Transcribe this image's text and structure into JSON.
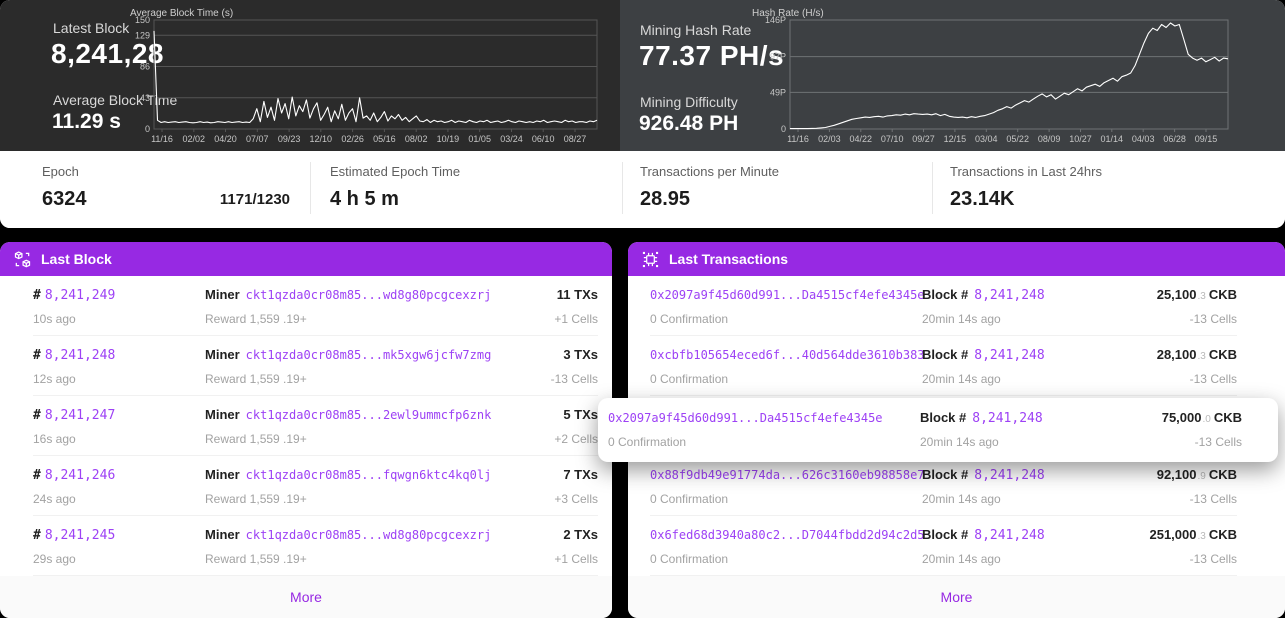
{
  "theme": {
    "purple": "#9729e3",
    "link_purple": "#9d41f5",
    "dark_left_bg": "#2b2b2b",
    "dark_right_bg": "#3d4043",
    "page_bg": "#000000"
  },
  "top": {
    "left": {
      "latest_block_label": "Latest Block",
      "latest_block_value": "8,241,28",
      "avg_block_time_label": "Average Block Time",
      "avg_block_time_value": "11.29 s"
    },
    "right": {
      "hash_rate_label": "Mining Hash Rate",
      "hash_rate_value": "77.37 PH/s",
      "difficulty_label": "Mining Difficulty",
      "difficulty_value": "926.48 PH"
    }
  },
  "chart_data": [
    {
      "type": "line",
      "title": "Average Block Time (s)",
      "xlabel": "",
      "ylabel": "seconds",
      "ylim": [
        0,
        150
      ],
      "grid": true,
      "legend_position": "none",
      "yticks": [
        {
          "value": 150,
          "label": "150"
        },
        {
          "value": 129,
          "label": "129"
        },
        {
          "value": 86,
          "label": "86"
        },
        {
          "value": 43,
          "label": "43"
        },
        {
          "value": 0,
          "label": "0"
        }
      ],
      "x_labels": [
        "11/16",
        "02/02",
        "04/20",
        "07/07",
        "09/23",
        "12/10",
        "02/26",
        "05/16",
        "08/02",
        "10/19",
        "01/05",
        "03/24",
        "06/10",
        "08/27"
      ],
      "grid_color": "#555555",
      "text_color": "#c6c6c6",
      "line_color": "#ffffff",
      "values": [
        135,
        12,
        9,
        10,
        9,
        9.5,
        10,
        9,
        9.5,
        10,
        9,
        8.5,
        9,
        10,
        9,
        9.5,
        8.5,
        9,
        10,
        9.5,
        9,
        10,
        9,
        9.5,
        10,
        9,
        9.5,
        9,
        14,
        28,
        10,
        38,
        16,
        30,
        12,
        42,
        22,
        35,
        14,
        44,
        18,
        32,
        24,
        40,
        15,
        28,
        36,
        12,
        20,
        30,
        10,
        25,
        14,
        34,
        12,
        22,
        28,
        10,
        43,
        15,
        18,
        12,
        22,
        10,
        16,
        24,
        11,
        18,
        14,
        20,
        12,
        16,
        10,
        14,
        18,
        11,
        10,
        13,
        9,
        12,
        10,
        11,
        9,
        10,
        12,
        9,
        11,
        10,
        9,
        12,
        10,
        9,
        11,
        10,
        12,
        9,
        10,
        11,
        9,
        10,
        12,
        10,
        9,
        11,
        10,
        9,
        10,
        9,
        11,
        10,
        12,
        9,
        10,
        11,
        10,
        9,
        12,
        10,
        11,
        9,
        10,
        10,
        9,
        11,
        10,
        12
      ]
    },
    {
      "type": "line",
      "title": "Hash Rate (H/s)",
      "xlabel": "",
      "ylabel": "hash rate (P)",
      "ylim": [
        0,
        146
      ],
      "grid": true,
      "legend_position": "none",
      "yticks": [
        {
          "value": 146,
          "label": "146P"
        },
        {
          "value": 97,
          "label": "97P"
        },
        {
          "value": 49,
          "label": "49P"
        },
        {
          "value": 0,
          "label": "0"
        }
      ],
      "x_labels": [
        "11/16",
        "02/03",
        "04/22",
        "07/10",
        "09/27",
        "12/15",
        "03/04",
        "05/22",
        "08/09",
        "10/27",
        "01/14",
        "04/03",
        "06/28",
        "09/15"
      ],
      "grid_color": "#6f7274",
      "text_color": "#c6c6c6",
      "line_color": "#ffffff",
      "values": [
        0.5,
        0.6,
        0.5,
        0.7,
        0.6,
        0.8,
        1,
        1.5,
        2,
        3.5,
        5,
        7,
        9,
        11,
        13,
        14,
        15,
        16,
        15.5,
        16.5,
        17,
        16,
        17.5,
        18,
        19,
        18.5,
        20,
        19,
        20.5,
        20,
        19.5,
        20,
        19,
        20.5,
        18,
        19.5,
        17,
        16,
        15.5,
        16,
        15,
        16.5,
        15.5,
        17,
        18,
        20,
        22,
        25,
        27,
        30,
        28,
        32,
        35,
        38,
        36,
        40,
        44,
        47,
        43,
        46,
        40,
        44,
        48,
        46,
        50,
        54,
        51,
        56,
        58,
        60,
        57,
        62,
        65,
        68,
        64,
        70,
        72,
        75,
        85,
        100,
        115,
        128,
        135,
        132,
        140,
        136,
        142,
        138,
        140,
        120,
        100,
        95,
        92,
        95,
        90,
        93,
        96,
        91,
        95,
        94
      ]
    }
  ],
  "stats": {
    "epoch_label": "Epoch",
    "epoch_value": "6324",
    "epoch_progress": "1171/1230",
    "est_label": "Estimated Epoch Time",
    "est_value": "4 h 5 m",
    "tpm_label": "Transactions per Minute",
    "tpm_value": "28.95",
    "t24_label": "Transactions in Last 24hrs",
    "t24_value": "23.14K"
  },
  "last_block": {
    "title": "Last Block",
    "number_prefix": "#",
    "miner_label": "Miner",
    "more": "More",
    "rows": [
      {
        "number": "8,241,249",
        "miner": "ckt1qzda0cr08m85...wd8g80pcgcexzrj",
        "txs": "11 TXs",
        "age": "10s ago",
        "reward": "Reward 1,559 .19+",
        "cells": "+1 Cells"
      },
      {
        "number": "8,241,248",
        "miner": "ckt1qzda0cr08m85...mk5xgw6jcfw7zmg",
        "txs": "3 TXs",
        "age": "12s ago",
        "reward": "Reward 1,559 .19+",
        "cells": "-13 Cells"
      },
      {
        "number": "8,241,247",
        "miner": "ckt1qzda0cr08m85...2ewl9ummcfp6znk",
        "txs": "5 TXs",
        "age": "16s ago",
        "reward": "Reward 1,559 .19+",
        "cells": "+2 Cells"
      },
      {
        "number": "8,241,246",
        "miner": "ckt1qzda0cr08m85...fqwgn6ktc4kq0lj",
        "txs": "7 TXs",
        "age": "24s ago",
        "reward": "Reward 1,559 .19+",
        "cells": "+3 Cells"
      },
      {
        "number": "8,241,245",
        "miner": "ckt1qzda0cr08m85...wd8g80pcgcexzrj",
        "txs": "2 TXs",
        "age": "29s ago",
        "reward": "Reward 1,559 .19+",
        "cells": "+1 Cells"
      }
    ]
  },
  "last_transactions": {
    "title": "Last Transactions",
    "block_label": "Block #",
    "more": "More",
    "rows": [
      {
        "hash": "0x2097a9f45d60d991...Da4515cf4efe4345e",
        "block": "8,241,248",
        "amount": "25,100",
        "decimal": ".3",
        "unit": "CKB",
        "confirmation": "0 Confirmation",
        "age": "20min 14s ago",
        "cells": "-13 Cells"
      },
      {
        "hash": "0xcbfb105654eced6f...40d564dde3610b383",
        "block": "8,241,248",
        "amount": "28,100",
        "decimal": ".3",
        "unit": "CKB",
        "confirmation": "0 Confirmation",
        "age": "20min 14s ago",
        "cells": "-13 Cells"
      },
      {
        "hash": "0x2097a9f45d60d991...Da4515cf4efe4345e",
        "block": "8,241,248",
        "amount": "75,000",
        "decimal": ".0",
        "unit": "CKB",
        "confirmation": "0 Confirmation",
        "age": "20min 14s ago",
        "cells": "-13 Cells"
      },
      {
        "hash": "0x88f9db49e91774da...626c3160eb98858e7",
        "block": "8,241,248",
        "amount": "92,100",
        "decimal": ".9",
        "unit": "CKB",
        "confirmation": "0 Confirmation",
        "age": "20min 14s ago",
        "cells": "-13 Cells"
      },
      {
        "hash": "0x6fed68d3940a80c2...D7044fbdd2d94c2d5",
        "block": "8,241,248",
        "amount": "251,000",
        "decimal": ".3",
        "unit": "CKB",
        "confirmation": "0 Confirmation",
        "age": "20min 14s ago",
        "cells": "-13 Cells"
      }
    ]
  },
  "floating_card": {
    "hash": "0x2097a9f45d60d991...Da4515cf4efe4345e",
    "block_label": "Block #",
    "block": "8,241,248",
    "amount": "75,000",
    "decimal": ".0",
    "unit": "CKB",
    "confirmation": "0 Confirmation",
    "age": "20min 14s ago",
    "cells": "-13 Cells"
  }
}
